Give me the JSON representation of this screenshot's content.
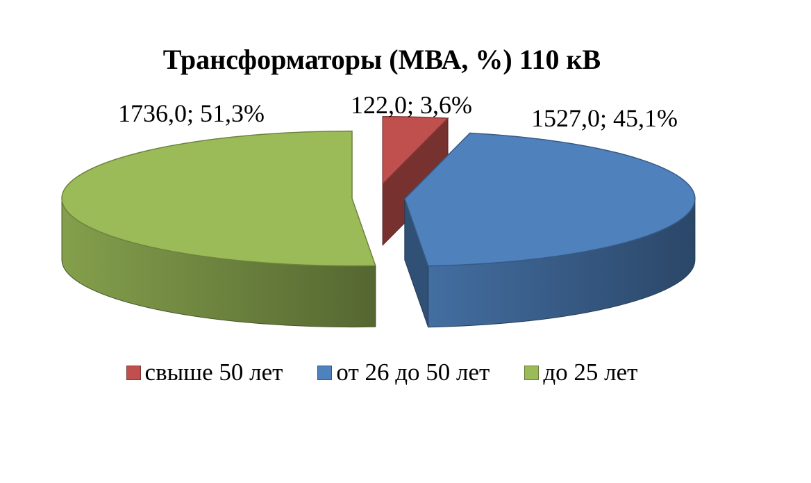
{
  "chart_data": {
    "type": "pie",
    "title": "Трансформаторы (МВА, %) 110 кВ",
    "series": [
      {
        "name": "свыше 50 лет",
        "value": 122.0,
        "percent": 3.6,
        "label": "122,0; 3,6%",
        "color": "#C0504D"
      },
      {
        "name": "от 26 до 50 лет",
        "value": 1527.0,
        "percent": 45.1,
        "label": "1527,0; 45,1%",
        "color": "#4F81BD"
      },
      {
        "name": "до 25 лет",
        "value": 1736.0,
        "percent": 51.3,
        "label": "1736,0; 51,3%",
        "color": "#9BBB59"
      }
    ],
    "style": "3d-exploded",
    "legend_position": "bottom"
  }
}
